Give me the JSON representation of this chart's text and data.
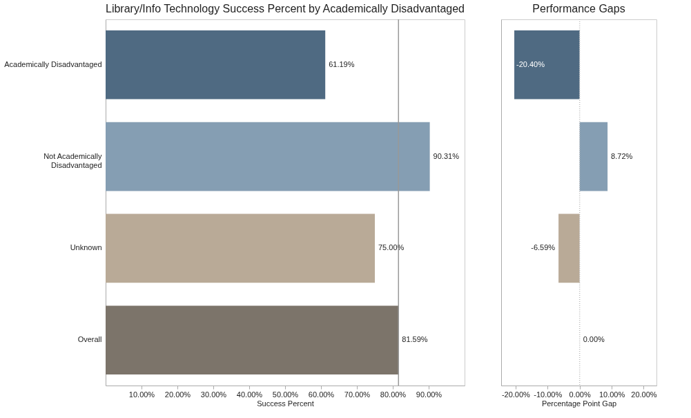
{
  "chart_data": [
    {
      "type": "bar",
      "orientation": "horizontal",
      "title": "Library/Info Technology Success Percent by Academically Disadvantaged",
      "xlabel": "Success Percent",
      "categories": [
        "Academically Disadvantaged",
        "Not Academically Disadvantaged",
        "Unknown",
        "Overall"
      ],
      "values": [
        61.19,
        90.31,
        75.0,
        81.59
      ],
      "value_labels": [
        "61.19%",
        "90.31%",
        "75.00%",
        "81.59%"
      ],
      "colors": [
        "#4f6a82",
        "#859eb3",
        "#b9aa97",
        "#7c746a"
      ],
      "xlim": [
        0,
        100
      ],
      "xticks": [
        {
          "value": 10,
          "label": "10.00%"
        },
        {
          "value": 20,
          "label": "20.00%"
        },
        {
          "value": 30,
          "label": "30.00%"
        },
        {
          "value": 40,
          "label": "40.00%"
        },
        {
          "value": 50,
          "label": "50.00%"
        },
        {
          "value": 60,
          "label": "60.00%"
        },
        {
          "value": 70,
          "label": "70.00%"
        },
        {
          "value": 80,
          "label": "80.00%"
        },
        {
          "value": 90,
          "label": "90.00%"
        }
      ],
      "ref_lines": [
        {
          "axis": "x",
          "value": 81.59,
          "label": null,
          "color": "#999999",
          "line_style": "solid"
        }
      ],
      "grid": false,
      "legend": false
    },
    {
      "type": "bar",
      "orientation": "horizontal",
      "title": "Performance Gaps",
      "xlabel": "Percentage Point Gap",
      "categories": [
        null,
        null,
        null,
        null
      ],
      "values": [
        -20.4,
        8.72,
        -6.59,
        0.0
      ],
      "value_labels": [
        "-20.40%",
        "8.72%",
        "-6.59%",
        "0.00%"
      ],
      "colors": [
        "#4f6a82",
        "#859eb3",
        "#b9aa97",
        "#7c746a"
      ],
      "xlim": [
        -24.5,
        24
      ],
      "xticks": [
        {
          "value": -20,
          "label": "-20.00%"
        },
        {
          "value": -10,
          "label": "-10.00%"
        },
        {
          "value": 0,
          "label": "0.00%"
        },
        {
          "value": 10,
          "label": "10.00%"
        },
        {
          "value": 20,
          "label": "20.00%"
        }
      ],
      "ref_lines": [
        {
          "axis": "x",
          "value": 0,
          "label": null,
          "color": "#bbbbbb",
          "line_style": "dotted"
        }
      ],
      "tick_labels": "x",
      "grid": false,
      "legend": false
    }
  ]
}
